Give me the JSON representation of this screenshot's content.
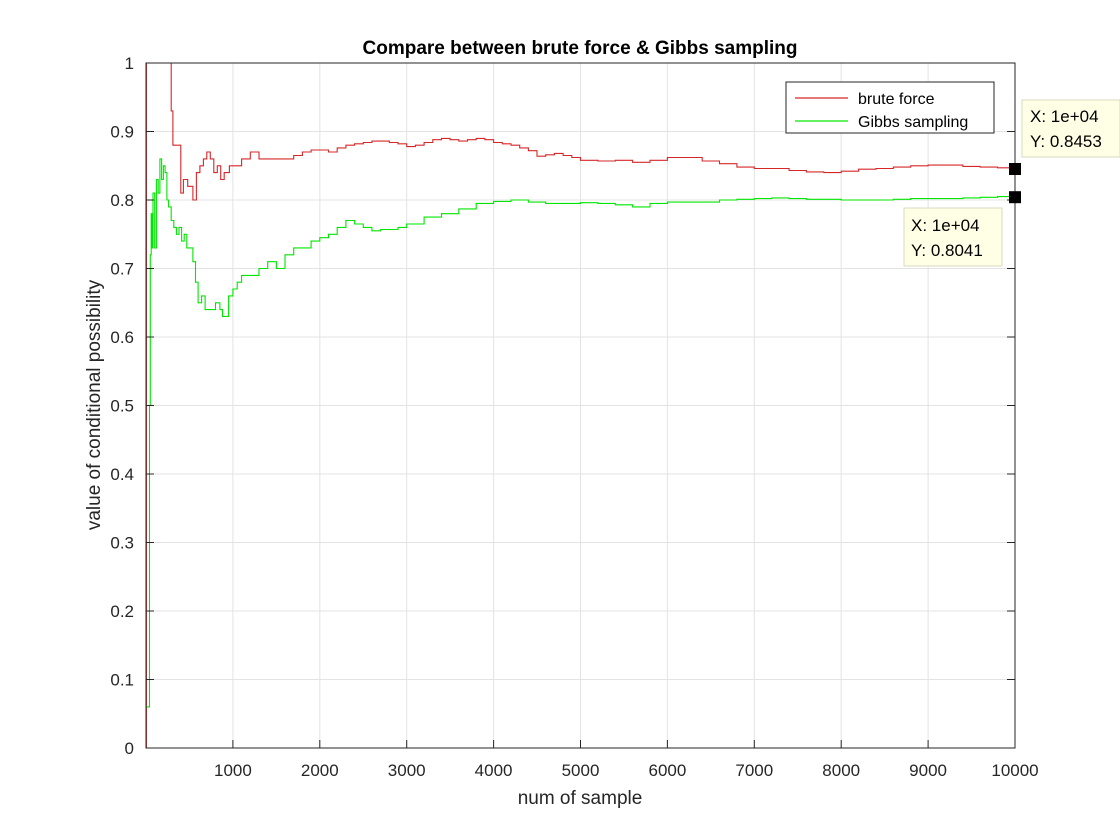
{
  "chart_data": {
    "type": "line",
    "title": "Compare between brute force & Gibbs sampling",
    "xlabel": "num of sample",
    "ylabel": "value of conditional possibility",
    "xlim": [
      0,
      10000
    ],
    "ylim": [
      0,
      1
    ],
    "x_ticks": [
      1000,
      2000,
      3000,
      4000,
      5000,
      6000,
      7000,
      8000,
      9000,
      10000
    ],
    "y_ticks": [
      0,
      0.1,
      0.2,
      0.3,
      0.4,
      0.5,
      0.6,
      0.7,
      0.8,
      0.9,
      1
    ],
    "grid": true,
    "legend_position": "top-right",
    "series": [
      {
        "name": "brute force",
        "color": "#d62728",
        "points": [
          [
            0,
            0
          ],
          [
            5,
            1
          ],
          [
            270,
            1
          ],
          [
            290,
            0.93
          ],
          [
            310,
            0.88
          ],
          [
            380,
            0.88
          ],
          [
            400,
            0.81
          ],
          [
            430,
            0.83
          ],
          [
            480,
            0.82
          ],
          [
            540,
            0.8
          ],
          [
            580,
            0.84
          ],
          [
            620,
            0.85
          ],
          [
            660,
            0.86
          ],
          [
            700,
            0.87
          ],
          [
            740,
            0.86
          ],
          [
            780,
            0.84
          ],
          [
            820,
            0.85
          ],
          [
            860,
            0.83
          ],
          [
            900,
            0.84
          ],
          [
            960,
            0.85
          ],
          [
            1000,
            0.85
          ],
          [
            1100,
            0.86
          ],
          [
            1200,
            0.87
          ],
          [
            1300,
            0.86
          ],
          [
            1400,
            0.86
          ],
          [
            1500,
            0.86
          ],
          [
            1600,
            0.86
          ],
          [
            1700,
            0.865
          ],
          [
            1800,
            0.87
          ],
          [
            1900,
            0.873
          ],
          [
            2000,
            0.873
          ],
          [
            2100,
            0.87
          ],
          [
            2200,
            0.876
          ],
          [
            2300,
            0.88
          ],
          [
            2400,
            0.882
          ],
          [
            2500,
            0.884
          ],
          [
            2600,
            0.886
          ],
          [
            2700,
            0.886
          ],
          [
            2800,
            0.884
          ],
          [
            2900,
            0.882
          ],
          [
            3000,
            0.878
          ],
          [
            3100,
            0.88
          ],
          [
            3200,
            0.884
          ],
          [
            3300,
            0.888
          ],
          [
            3400,
            0.89
          ],
          [
            3500,
            0.888
          ],
          [
            3600,
            0.886
          ],
          [
            3700,
            0.888
          ],
          [
            3800,
            0.89
          ],
          [
            3900,
            0.888
          ],
          [
            4000,
            0.884
          ],
          [
            4100,
            0.882
          ],
          [
            4200,
            0.88
          ],
          [
            4300,
            0.876
          ],
          [
            4400,
            0.872
          ],
          [
            4500,
            0.864
          ],
          [
            4600,
            0.866
          ],
          [
            4700,
            0.868
          ],
          [
            4800,
            0.865
          ],
          [
            4900,
            0.862
          ],
          [
            5000,
            0.858
          ],
          [
            5200,
            0.857
          ],
          [
            5400,
            0.858
          ],
          [
            5600,
            0.855
          ],
          [
            5800,
            0.858
          ],
          [
            6000,
            0.862
          ],
          [
            6200,
            0.862
          ],
          [
            6400,
            0.857
          ],
          [
            6600,
            0.853
          ],
          [
            6800,
            0.848
          ],
          [
            7000,
            0.846
          ],
          [
            7200,
            0.846
          ],
          [
            7400,
            0.843
          ],
          [
            7600,
            0.841
          ],
          [
            7800,
            0.84
          ],
          [
            8000,
            0.842
          ],
          [
            8200,
            0.845
          ],
          [
            8400,
            0.846
          ],
          [
            8600,
            0.848
          ],
          [
            8800,
            0.85
          ],
          [
            9000,
            0.851
          ],
          [
            9200,
            0.851
          ],
          [
            9400,
            0.849
          ],
          [
            9600,
            0.848
          ],
          [
            9800,
            0.847
          ],
          [
            10000,
            0.8453
          ]
        ]
      },
      {
        "name": "Gibbs sampling",
        "color": "#00e600",
        "points": [
          [
            0,
            0.06
          ],
          [
            30,
            0.06
          ],
          [
            40,
            0.5
          ],
          [
            50,
            0.72
          ],
          [
            60,
            0.78
          ],
          [
            70,
            0.73
          ],
          [
            80,
            0.81
          ],
          [
            100,
            0.73
          ],
          [
            120,
            0.83
          ],
          [
            140,
            0.81
          ],
          [
            160,
            0.86
          ],
          [
            180,
            0.83
          ],
          [
            200,
            0.85
          ],
          [
            220,
            0.84
          ],
          [
            240,
            0.8
          ],
          [
            260,
            0.79
          ],
          [
            290,
            0.77
          ],
          [
            320,
            0.76
          ],
          [
            350,
            0.75
          ],
          [
            380,
            0.76
          ],
          [
            410,
            0.74
          ],
          [
            440,
            0.75
          ],
          [
            470,
            0.73
          ],
          [
            500,
            0.73
          ],
          [
            540,
            0.71
          ],
          [
            570,
            0.68
          ],
          [
            600,
            0.65
          ],
          [
            640,
            0.66
          ],
          [
            680,
            0.64
          ],
          [
            720,
            0.64
          ],
          [
            760,
            0.64
          ],
          [
            800,
            0.65
          ],
          [
            850,
            0.64
          ],
          [
            880,
            0.63
          ],
          [
            910,
            0.63
          ],
          [
            950,
            0.66
          ],
          [
            1000,
            0.67
          ],
          [
            1050,
            0.68
          ],
          [
            1100,
            0.69
          ],
          [
            1200,
            0.69
          ],
          [
            1300,
            0.7
          ],
          [
            1400,
            0.71
          ],
          [
            1500,
            0.7
          ],
          [
            1600,
            0.72
          ],
          [
            1700,
            0.73
          ],
          [
            1800,
            0.73
          ],
          [
            1900,
            0.74
          ],
          [
            2000,
            0.745
          ],
          [
            2100,
            0.75
          ],
          [
            2200,
            0.76
          ],
          [
            2300,
            0.77
          ],
          [
            2400,
            0.765
          ],
          [
            2500,
            0.76
          ],
          [
            2600,
            0.755
          ],
          [
            2700,
            0.757
          ],
          [
            2800,
            0.757
          ],
          [
            2900,
            0.76
          ],
          [
            3000,
            0.765
          ],
          [
            3200,
            0.775
          ],
          [
            3400,
            0.78
          ],
          [
            3600,
            0.787
          ],
          [
            3800,
            0.795
          ],
          [
            4000,
            0.798
          ],
          [
            4200,
            0.8
          ],
          [
            4400,
            0.797
          ],
          [
            4600,
            0.795
          ],
          [
            4800,
            0.795
          ],
          [
            5000,
            0.796
          ],
          [
            5200,
            0.795
          ],
          [
            5400,
            0.793
          ],
          [
            5600,
            0.79
          ],
          [
            5800,
            0.795
          ],
          [
            6000,
            0.797
          ],
          [
            6200,
            0.797
          ],
          [
            6400,
            0.797
          ],
          [
            6600,
            0.8
          ],
          [
            6800,
            0.801
          ],
          [
            7000,
            0.802
          ],
          [
            7200,
            0.803
          ],
          [
            7400,
            0.802
          ],
          [
            7600,
            0.801
          ],
          [
            7800,
            0.801
          ],
          [
            8000,
            0.8
          ],
          [
            8200,
            0.8
          ],
          [
            8400,
            0.8
          ],
          [
            8600,
            0.801
          ],
          [
            8800,
            0.802
          ],
          [
            9000,
            0.802
          ],
          [
            9200,
            0.802
          ],
          [
            9400,
            0.803
          ],
          [
            9600,
            0.804
          ],
          [
            9800,
            0.805
          ],
          [
            10000,
            0.8041
          ]
        ]
      }
    ],
    "datatips": [
      {
        "x_text": "X: 1e+04",
        "y_text": "Y: 0.8453",
        "x": 10000,
        "y": 0.8453
      },
      {
        "x_text": "X: 1e+04",
        "y_text": "Y: 0.8041",
        "x": 10000,
        "y": 0.8041
      }
    ]
  }
}
